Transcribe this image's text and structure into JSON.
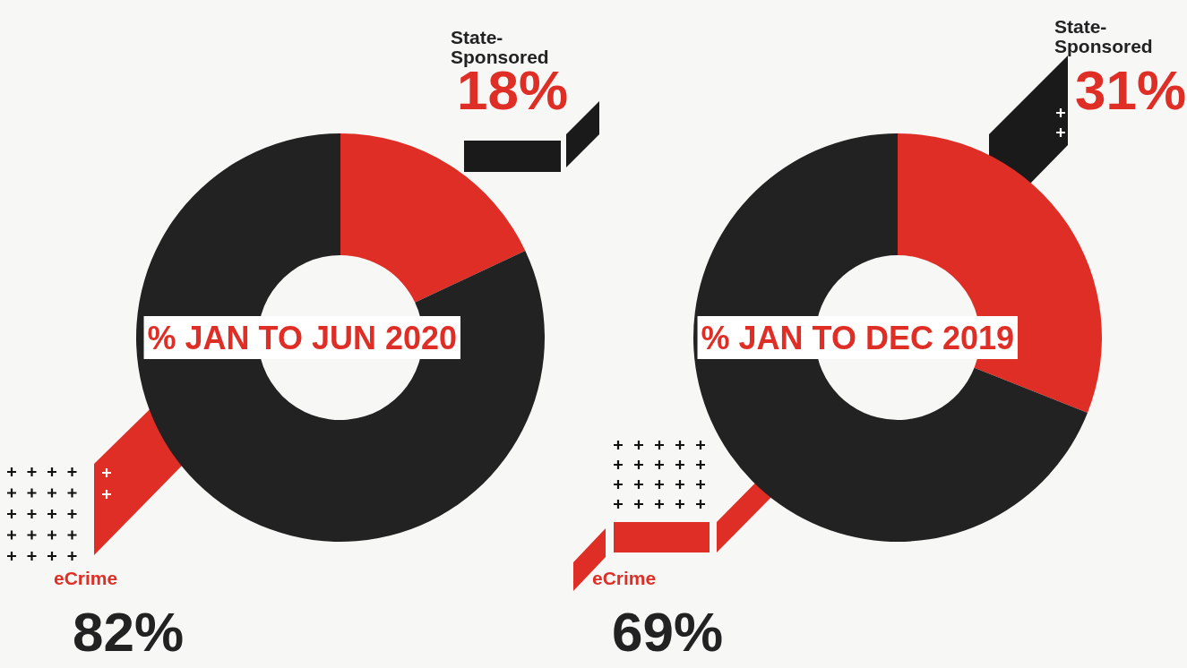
{
  "chart_data": [
    {
      "type": "donut",
      "title": "% JAN TO JUN 2020",
      "categories": [
        "State-Sponsored",
        "eCrime"
      ],
      "values": [
        18,
        82
      ],
      "colors": [
        "#df2e26",
        "#222222"
      ],
      "value_labels": [
        "18%",
        "82%"
      ],
      "legend": false
    },
    {
      "type": "donut",
      "title": "% JAN TO DEC 2019",
      "categories": [
        "State-Sponsored",
        "eCrime"
      ],
      "values": [
        31,
        69
      ],
      "colors": [
        "#df2e26",
        "#222222"
      ],
      "value_labels": [
        "31%",
        "69%"
      ],
      "legend": false
    }
  ]
}
